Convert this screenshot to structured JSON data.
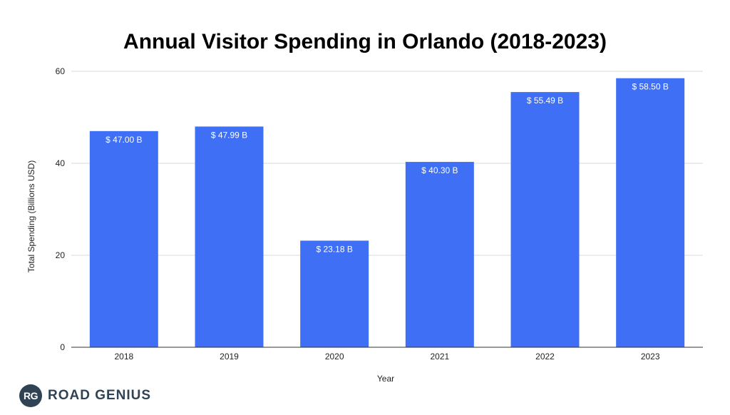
{
  "chart_data": {
    "type": "bar",
    "title": "Annual Visitor Spending in Orlando (2018-2023)",
    "xlabel": "Year",
    "ylabel": "Total Spending (Billions USD)",
    "categories": [
      "2018",
      "2019",
      "2020",
      "2021",
      "2022",
      "2023"
    ],
    "values": [
      47.0,
      47.99,
      23.18,
      40.3,
      55.49,
      58.5
    ],
    "data_labels": [
      "$ 47.00 B",
      "$ 47.99 B",
      "$ 23.18 B",
      "$ 40.30 B",
      "$ 55.49 B",
      "$ 58.50 B"
    ],
    "ylim": [
      0,
      60
    ],
    "yticks": [
      0,
      20,
      40,
      60
    ],
    "grid": true,
    "legend": "none",
    "bar_color": "#3f6ff5"
  },
  "branding": {
    "badge_text": "RG",
    "name": "ROAD GENIUS"
  }
}
